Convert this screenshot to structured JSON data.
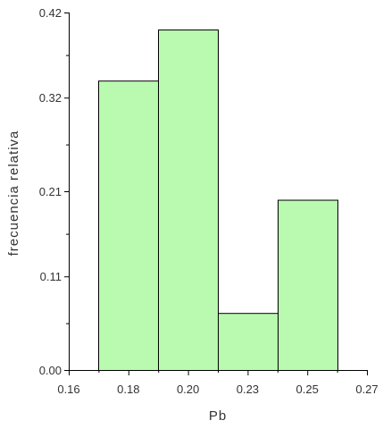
{
  "chart_data": {
    "type": "bar",
    "bins": [
      {
        "x0": 0.17,
        "x1": 0.19,
        "value": 0.34
      },
      {
        "x0": 0.19,
        "x1": 0.21,
        "value": 0.4
      },
      {
        "x0": 0.21,
        "x1": 0.23,
        "value": 0.067
      },
      {
        "x0": 0.23,
        "x1": 0.25,
        "value": 0.2
      }
    ],
    "xlabel": "Pb",
    "ylabel": "frecuencia relativa",
    "xlim": [
      0.16,
      0.27
    ],
    "ylim": [
      0.0,
      0.42
    ],
    "x_ticks": [
      0.16,
      0.18,
      0.2,
      0.23,
      0.25,
      0.27
    ],
    "x_tick_labels": [
      "0.16",
      "0.18",
      "0.20",
      "0.23",
      "0.25",
      "0.27"
    ],
    "y_ticks": [
      0.0,
      0.11,
      0.21,
      0.32,
      0.42
    ],
    "y_tick_labels": [
      "0.00",
      "0.11",
      "0.21",
      "0.32",
      "0.42"
    ],
    "bar_color": "#b9f9b0",
    "edge_color": "#000000",
    "grid": false
  }
}
